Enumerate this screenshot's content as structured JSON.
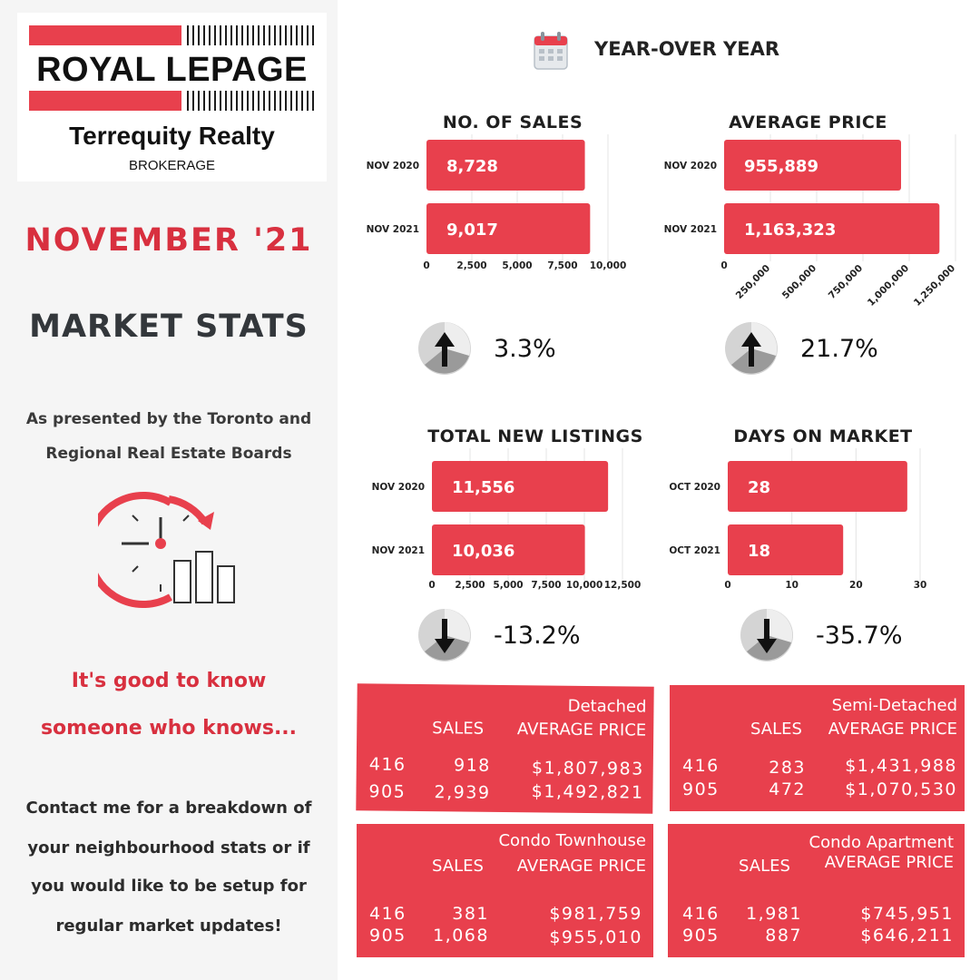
{
  "brand": {
    "name": "ROYAL LEPAGE",
    "office": "Terrequity Realty",
    "brokerage": "BROKERAGE"
  },
  "sidebar": {
    "month": "NOVEMBER '21",
    "heading": "MARKET STATS",
    "presented_line1": "As presented by the Toronto and",
    "presented_line2": "Regional Real Estate Boards",
    "tagline_line1": "It's good to know",
    "tagline_line2": "someone who knows...",
    "contact_lines": [
      "Contact me for a breakdown of",
      "your neighbourhood stats or if",
      "you would like to be setup for",
      "regular market updates!"
    ]
  },
  "yoy": {
    "title": "YEAR-OVER YEAR",
    "icon": "calendar-icon"
  },
  "colors": {
    "accent": "#e8404d",
    "title_red": "#d8303f",
    "pie_light": "#d4d4d4",
    "pie_dark": "#8a8a8a"
  },
  "chart_data": [
    {
      "type": "bar",
      "orientation": "horizontal",
      "title": "NO. OF SALES",
      "categories": [
        "NOV 2020",
        "NOV 2021"
      ],
      "values": [
        8728,
        9017
      ],
      "value_labels": [
        "8,728",
        "9,017"
      ],
      "xlim": [
        0,
        10000
      ],
      "ticks": [
        0,
        2500,
        5000,
        7500,
        10000
      ],
      "tick_labels": [
        "0",
        "2,500",
        "5,000",
        "7,500",
        "10,000"
      ],
      "change": "3.3%",
      "direction": "up"
    },
    {
      "type": "bar",
      "orientation": "horizontal",
      "title": "AVERAGE PRICE",
      "categories": [
        "NOV 2020",
        "NOV 2021"
      ],
      "values": [
        955889,
        1163323
      ],
      "value_labels": [
        "955,889",
        "1,163,323"
      ],
      "xlim": [
        0,
        1250000
      ],
      "ticks": [
        0,
        250000,
        500000,
        750000,
        1000000,
        1250000
      ],
      "tick_labels": [
        "0",
        "250,000",
        "500,000",
        "750,000",
        "1,000,000",
        "1,250,000"
      ],
      "rotate_ticks": true,
      "change": "21.7%",
      "direction": "up"
    },
    {
      "type": "bar",
      "orientation": "horizontal",
      "title": "TOTAL NEW LISTINGS",
      "categories": [
        "NOV 2020",
        "NOV 2021"
      ],
      "values": [
        11556,
        10036
      ],
      "value_labels": [
        "11,556",
        "10,036"
      ],
      "xlim": [
        0,
        12500
      ],
      "ticks": [
        0,
        2500,
        5000,
        7500,
        10000,
        12500
      ],
      "tick_labels": [
        "0",
        "2,500",
        "5,000",
        "7,500",
        "10,000",
        "12,500"
      ],
      "change": "-13.2%",
      "direction": "down"
    },
    {
      "type": "bar",
      "orientation": "horizontal",
      "title": "DAYS ON MARKET",
      "categories": [
        "OCT 2020",
        "OCT 2021"
      ],
      "values": [
        28,
        18
      ],
      "value_labels": [
        "28",
        "18"
      ],
      "xlim": [
        0,
        30
      ],
      "ticks": [
        0,
        10,
        20,
        30
      ],
      "tick_labels": [
        "0",
        "10",
        "20",
        "30"
      ],
      "change": "-35.7%",
      "direction": "down"
    }
  ],
  "categories": [
    {
      "name": "Detached",
      "sales_label": "SALES",
      "price_label": "AVERAGE PRICE",
      "rows": [
        {
          "area": "416",
          "sales": "918",
          "price": "$1,807,983"
        },
        {
          "area": "905",
          "sales": "2,939",
          "price": "$1,492,821"
        }
      ]
    },
    {
      "name": "Semi-Detached",
      "sales_label": "SALES",
      "price_label": "AVERAGE PRICE",
      "rows": [
        {
          "area": "416",
          "sales": "283",
          "price": "$1,431,988"
        },
        {
          "area": "905",
          "sales": "472",
          "price": "$1,070,530"
        }
      ]
    },
    {
      "name": "Condo Townhouse",
      "sales_label": "SALES",
      "price_label": "AVERAGE PRICE",
      "rows": [
        {
          "area": "416",
          "sales": "381",
          "price": "$981,759"
        },
        {
          "area": "905",
          "sales": "1,068",
          "price": "$955,010"
        }
      ]
    },
    {
      "name": "Condo Apartment",
      "sales_label": "SALES",
      "price_label": "AVERAGE PRICE",
      "rows": [
        {
          "area": "416",
          "sales": "1,981",
          "price": "$745,951"
        },
        {
          "area": "905",
          "sales": "887",
          "price": "$646,211"
        }
      ]
    }
  ]
}
